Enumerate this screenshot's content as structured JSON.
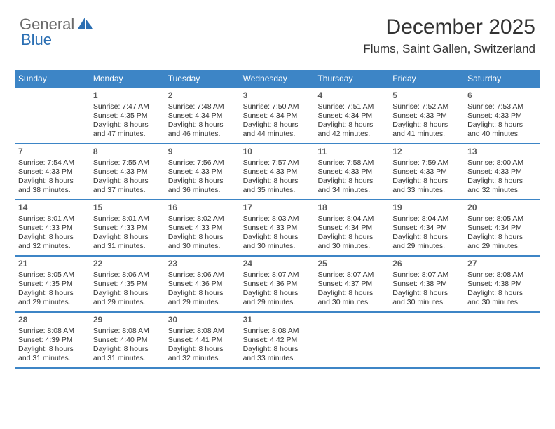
{
  "logo": {
    "part1": "General",
    "part2": "Blue"
  },
  "colors": {
    "primary": "#3d85c6",
    "logo_gray": "#6b6b6b",
    "logo_blue": "#2b6fb3",
    "text": "#333333",
    "daynum": "#5a5a5a",
    "background": "#ffffff"
  },
  "title": "December 2025",
  "location": "Flums, Saint Gallen, Switzerland",
  "weekdays": [
    "Sunday",
    "Monday",
    "Tuesday",
    "Wednesday",
    "Thursday",
    "Friday",
    "Saturday"
  ],
  "weeks": [
    [
      {
        "n": ""
      },
      {
        "n": "1",
        "sr": "Sunrise: 7:47 AM",
        "ss": "Sunset: 4:35 PM",
        "d1": "Daylight: 8 hours",
        "d2": "and 47 minutes."
      },
      {
        "n": "2",
        "sr": "Sunrise: 7:48 AM",
        "ss": "Sunset: 4:34 PM",
        "d1": "Daylight: 8 hours",
        "d2": "and 46 minutes."
      },
      {
        "n": "3",
        "sr": "Sunrise: 7:50 AM",
        "ss": "Sunset: 4:34 PM",
        "d1": "Daylight: 8 hours",
        "d2": "and 44 minutes."
      },
      {
        "n": "4",
        "sr": "Sunrise: 7:51 AM",
        "ss": "Sunset: 4:34 PM",
        "d1": "Daylight: 8 hours",
        "d2": "and 42 minutes."
      },
      {
        "n": "5",
        "sr": "Sunrise: 7:52 AM",
        "ss": "Sunset: 4:33 PM",
        "d1": "Daylight: 8 hours",
        "d2": "and 41 minutes."
      },
      {
        "n": "6",
        "sr": "Sunrise: 7:53 AM",
        "ss": "Sunset: 4:33 PM",
        "d1": "Daylight: 8 hours",
        "d2": "and 40 minutes."
      }
    ],
    [
      {
        "n": "7",
        "sr": "Sunrise: 7:54 AM",
        "ss": "Sunset: 4:33 PM",
        "d1": "Daylight: 8 hours",
        "d2": "and 38 minutes."
      },
      {
        "n": "8",
        "sr": "Sunrise: 7:55 AM",
        "ss": "Sunset: 4:33 PM",
        "d1": "Daylight: 8 hours",
        "d2": "and 37 minutes."
      },
      {
        "n": "9",
        "sr": "Sunrise: 7:56 AM",
        "ss": "Sunset: 4:33 PM",
        "d1": "Daylight: 8 hours",
        "d2": "and 36 minutes."
      },
      {
        "n": "10",
        "sr": "Sunrise: 7:57 AM",
        "ss": "Sunset: 4:33 PM",
        "d1": "Daylight: 8 hours",
        "d2": "and 35 minutes."
      },
      {
        "n": "11",
        "sr": "Sunrise: 7:58 AM",
        "ss": "Sunset: 4:33 PM",
        "d1": "Daylight: 8 hours",
        "d2": "and 34 minutes."
      },
      {
        "n": "12",
        "sr": "Sunrise: 7:59 AM",
        "ss": "Sunset: 4:33 PM",
        "d1": "Daylight: 8 hours",
        "d2": "and 33 minutes."
      },
      {
        "n": "13",
        "sr": "Sunrise: 8:00 AM",
        "ss": "Sunset: 4:33 PM",
        "d1": "Daylight: 8 hours",
        "d2": "and 32 minutes."
      }
    ],
    [
      {
        "n": "14",
        "sr": "Sunrise: 8:01 AM",
        "ss": "Sunset: 4:33 PM",
        "d1": "Daylight: 8 hours",
        "d2": "and 32 minutes."
      },
      {
        "n": "15",
        "sr": "Sunrise: 8:01 AM",
        "ss": "Sunset: 4:33 PM",
        "d1": "Daylight: 8 hours",
        "d2": "and 31 minutes."
      },
      {
        "n": "16",
        "sr": "Sunrise: 8:02 AM",
        "ss": "Sunset: 4:33 PM",
        "d1": "Daylight: 8 hours",
        "d2": "and 30 minutes."
      },
      {
        "n": "17",
        "sr": "Sunrise: 8:03 AM",
        "ss": "Sunset: 4:33 PM",
        "d1": "Daylight: 8 hours",
        "d2": "and 30 minutes."
      },
      {
        "n": "18",
        "sr": "Sunrise: 8:04 AM",
        "ss": "Sunset: 4:34 PM",
        "d1": "Daylight: 8 hours",
        "d2": "and 30 minutes."
      },
      {
        "n": "19",
        "sr": "Sunrise: 8:04 AM",
        "ss": "Sunset: 4:34 PM",
        "d1": "Daylight: 8 hours",
        "d2": "and 29 minutes."
      },
      {
        "n": "20",
        "sr": "Sunrise: 8:05 AM",
        "ss": "Sunset: 4:34 PM",
        "d1": "Daylight: 8 hours",
        "d2": "and 29 minutes."
      }
    ],
    [
      {
        "n": "21",
        "sr": "Sunrise: 8:05 AM",
        "ss": "Sunset: 4:35 PM",
        "d1": "Daylight: 8 hours",
        "d2": "and 29 minutes."
      },
      {
        "n": "22",
        "sr": "Sunrise: 8:06 AM",
        "ss": "Sunset: 4:35 PM",
        "d1": "Daylight: 8 hours",
        "d2": "and 29 minutes."
      },
      {
        "n": "23",
        "sr": "Sunrise: 8:06 AM",
        "ss": "Sunset: 4:36 PM",
        "d1": "Daylight: 8 hours",
        "d2": "and 29 minutes."
      },
      {
        "n": "24",
        "sr": "Sunrise: 8:07 AM",
        "ss": "Sunset: 4:36 PM",
        "d1": "Daylight: 8 hours",
        "d2": "and 29 minutes."
      },
      {
        "n": "25",
        "sr": "Sunrise: 8:07 AM",
        "ss": "Sunset: 4:37 PM",
        "d1": "Daylight: 8 hours",
        "d2": "and 30 minutes."
      },
      {
        "n": "26",
        "sr": "Sunrise: 8:07 AM",
        "ss": "Sunset: 4:38 PM",
        "d1": "Daylight: 8 hours",
        "d2": "and 30 minutes."
      },
      {
        "n": "27",
        "sr": "Sunrise: 8:08 AM",
        "ss": "Sunset: 4:38 PM",
        "d1": "Daylight: 8 hours",
        "d2": "and 30 minutes."
      }
    ],
    [
      {
        "n": "28",
        "sr": "Sunrise: 8:08 AM",
        "ss": "Sunset: 4:39 PM",
        "d1": "Daylight: 8 hours",
        "d2": "and 31 minutes."
      },
      {
        "n": "29",
        "sr": "Sunrise: 8:08 AM",
        "ss": "Sunset: 4:40 PM",
        "d1": "Daylight: 8 hours",
        "d2": "and 31 minutes."
      },
      {
        "n": "30",
        "sr": "Sunrise: 8:08 AM",
        "ss": "Sunset: 4:41 PM",
        "d1": "Daylight: 8 hours",
        "d2": "and 32 minutes."
      },
      {
        "n": "31",
        "sr": "Sunrise: 8:08 AM",
        "ss": "Sunset: 4:42 PM",
        "d1": "Daylight: 8 hours",
        "d2": "and 33 minutes."
      },
      {
        "n": ""
      },
      {
        "n": ""
      },
      {
        "n": ""
      }
    ]
  ]
}
